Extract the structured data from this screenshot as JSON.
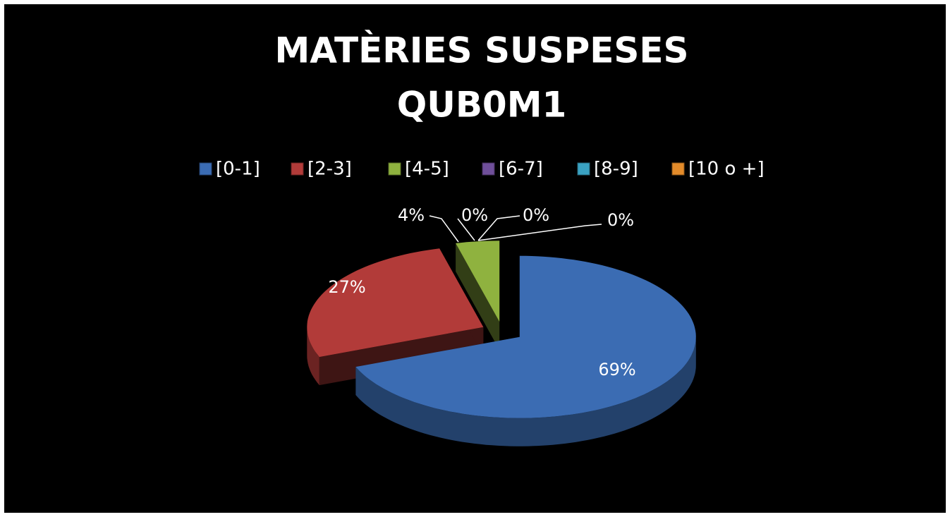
{
  "chart_data": {
    "type": "pie",
    "title": [
      "MATÈRIES  SUSPESES",
      "QUB0M1"
    ],
    "categories": [
      "[0-1]",
      "[2-3]",
      "[4-5]",
      "[6-7]",
      "[8-9]",
      "[10 o +]"
    ],
    "values": [
      69,
      27,
      4,
      0,
      0,
      0
    ],
    "value_labels": [
      "69%",
      "27%",
      "4%",
      "0%",
      "0%",
      "0%"
    ],
    "colors": [
      "#3b6cb3",
      "#b23b39",
      "#8fb23f",
      "#6f4f9a",
      "#3aa2c2",
      "#e38b2a"
    ],
    "legend": "top"
  }
}
